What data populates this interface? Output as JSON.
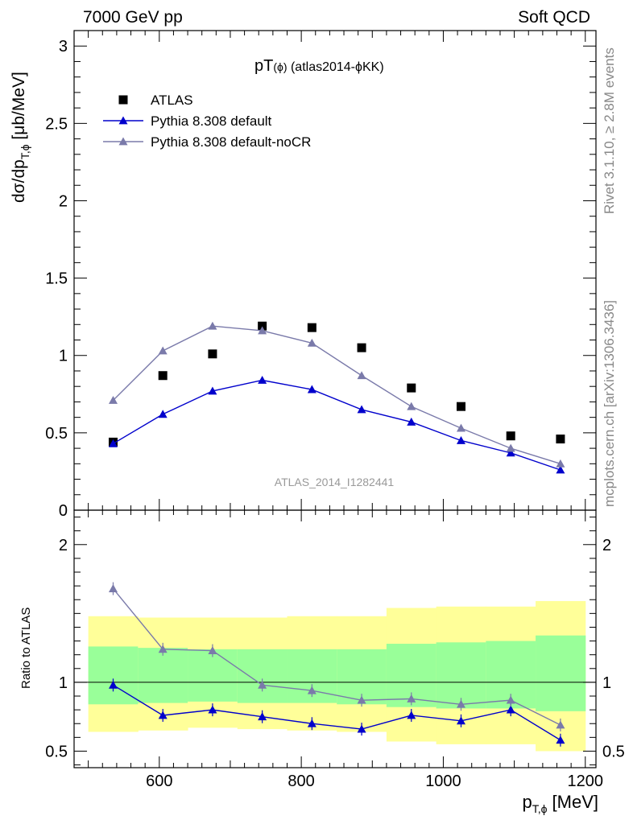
{
  "header": {
    "left": "7000 GeV pp",
    "right": "Soft QCD"
  },
  "side_labels": {
    "rivet": "Rivet 3.1.10, ≥ 2.8M events",
    "mcplots": "mcplots.cern.ch [arXiv:1306.3436]"
  },
  "chart_data": [
    {
      "type": "scatter",
      "title_main": "pT",
      "title_sub": "(ϕ)",
      "title_rest": " (atlas2014-ϕKK)",
      "ylabel_main": "dσ/dp",
      "ylabel_sub": "T,ϕ",
      "ylabel_rest": " [μb/MeV]",
      "watermark": "ATLAS_2014_I1282441",
      "xlim": [
        480,
        1215
      ],
      "ylim": [
        0,
        3.1
      ],
      "y_ticks": [
        0,
        0.5,
        1,
        1.5,
        2,
        2.5,
        3
      ],
      "y_tick_labels": [
        "0",
        "0.5",
        "1",
        "1.5",
        "2",
        "2.5",
        "3"
      ],
      "legend_position": "top-left",
      "x": [
        535,
        605,
        675,
        745,
        815,
        885,
        955,
        1025,
        1095,
        1165
      ],
      "series": [
        {
          "name": "ATLAS",
          "marker": "square",
          "color": "#000000",
          "values": [
            0.44,
            0.87,
            1.01,
            1.19,
            1.18,
            1.05,
            0.79,
            0.67,
            0.48,
            0.46
          ]
        },
        {
          "name": "Pythia 8.308 default",
          "marker": "triangle",
          "color": "#0000cc",
          "values": [
            0.43,
            0.62,
            0.77,
            0.84,
            0.78,
            0.65,
            0.57,
            0.45,
            0.37,
            0.26
          ]
        },
        {
          "name": "Pythia 8.308 default-noCR",
          "marker": "triangle",
          "color": "#7a7aaa",
          "values": [
            0.71,
            1.03,
            1.19,
            1.16,
            1.08,
            0.87,
            0.67,
            0.53,
            0.4,
            0.3
          ]
        }
      ]
    },
    {
      "type": "line",
      "ylabel": "Ratio to ATLAS",
      "xlabel_main": "p",
      "xlabel_sub": "T,ϕ",
      "xlabel_rest": " [MeV]",
      "xlim": [
        480,
        1215
      ],
      "ylim": [
        0.38,
        2.25
      ],
      "x_ticks": [
        600,
        800,
        1000,
        1200
      ],
      "x_tick_labels": [
        "600",
        "800",
        "1000",
        "1200"
      ],
      "y_ticks": [
        0.5,
        1,
        2
      ],
      "y_tick_labels": [
        "0.5",
        "1",
        "2"
      ],
      "reference_line": 1,
      "bands": {
        "bin_edges": [
          500,
          570,
          640,
          710,
          780,
          850,
          920,
          990,
          1060,
          1130,
          1200
        ],
        "yellow_low": [
          0.64,
          0.65,
          0.67,
          0.66,
          0.65,
          0.64,
          0.57,
          0.55,
          0.55,
          0.5
        ],
        "yellow_high": [
          1.48,
          1.47,
          1.47,
          1.47,
          1.48,
          1.48,
          1.54,
          1.55,
          1.55,
          1.59
        ],
        "green_low": [
          0.84,
          0.85,
          0.86,
          0.85,
          0.85,
          0.84,
          0.82,
          0.81,
          0.81,
          0.79
        ],
        "green_high": [
          1.26,
          1.25,
          1.24,
          1.24,
          1.24,
          1.24,
          1.28,
          1.29,
          1.3,
          1.34
        ],
        "yellow_color": "#ffff99",
        "green_color": "#99ff99"
      },
      "x": [
        535,
        605,
        675,
        745,
        815,
        885,
        955,
        1025,
        1095,
        1165
      ],
      "series": [
        {
          "name": "Pythia 8.308 default",
          "color": "#0000cc",
          "values": [
            0.98,
            0.76,
            0.8,
            0.75,
            0.7,
            0.66,
            0.76,
            0.72,
            0.8,
            0.58
          ]
        },
        {
          "name": "Pythia 8.308 default-noCR",
          "color": "#7a7aaa",
          "values": [
            1.68,
            1.24,
            1.23,
            0.98,
            0.94,
            0.87,
            0.88,
            0.84,
            0.87,
            0.69
          ]
        }
      ]
    }
  ]
}
